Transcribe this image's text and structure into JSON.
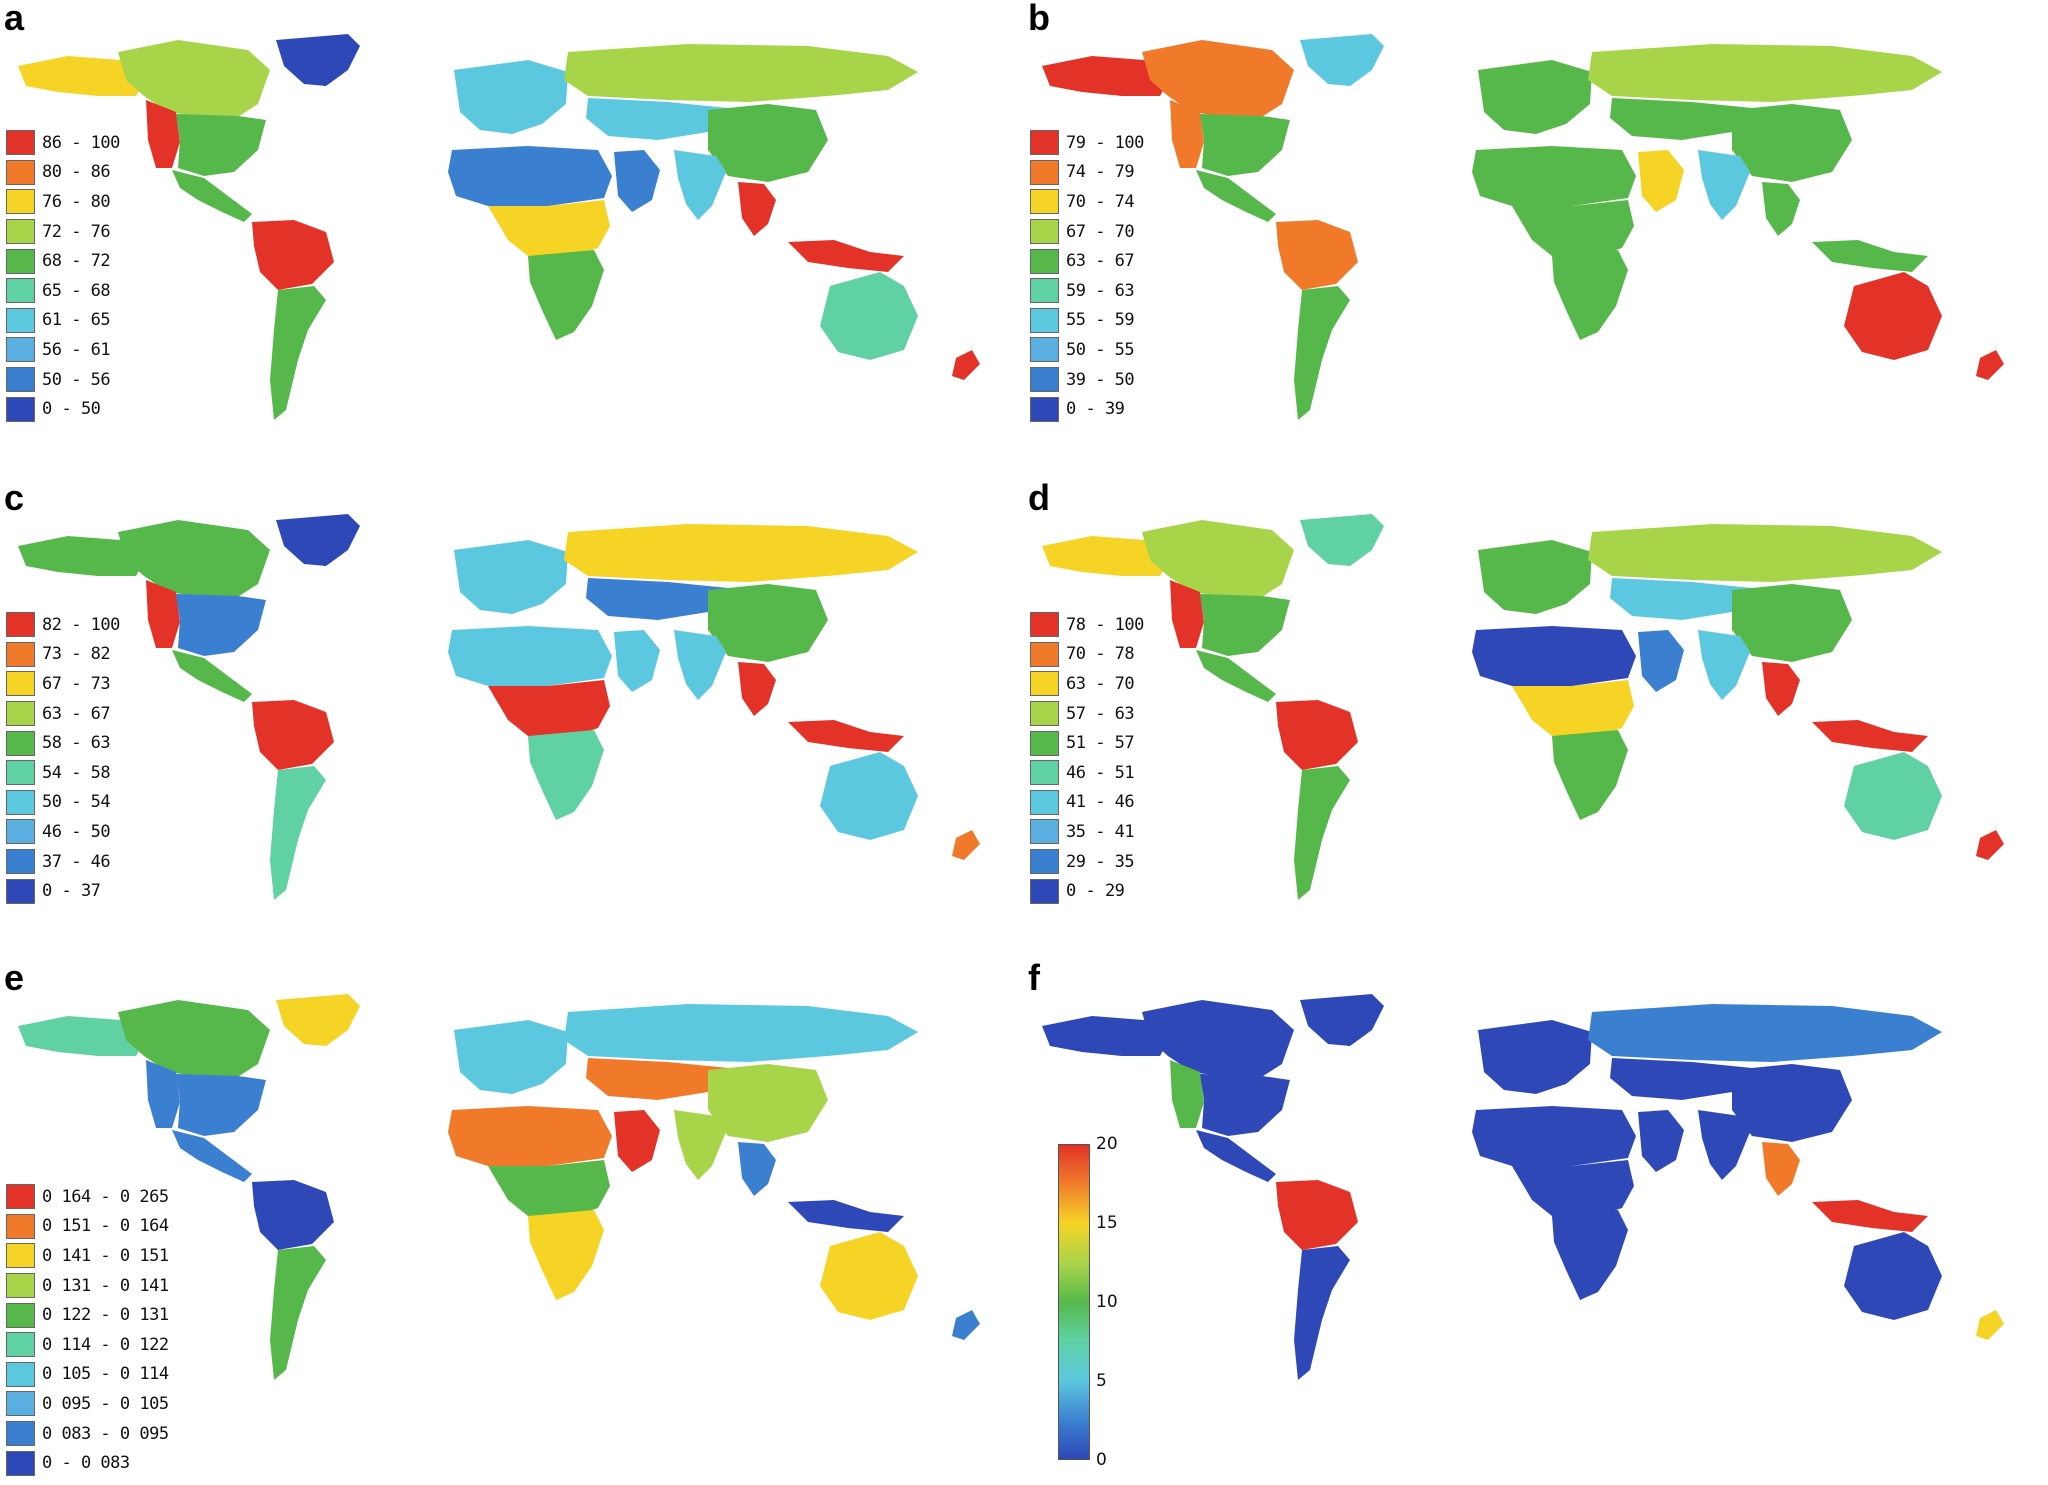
{
  "colors": {
    "c1": "#e33228",
    "c2": "#f07a2a",
    "c3": "#f5d426",
    "c4": "#a8d44a",
    "c5": "#56b84a",
    "c6": "#5fd1a2",
    "c7": "#5cc8e0",
    "c8": "#3b7fd0",
    "c9": "#2f48b8"
  },
  "panels": [
    {
      "letter": "a",
      "legend": [
        "86 - 100",
        "80 - 86",
        "76 - 80",
        "72 - 76",
        "68 - 72",
        "65 - 68",
        "61 - 65",
        "56 - 61",
        "50 - 56",
        "0 - 50"
      ],
      "greenland": "c9",
      "north_america": "c4",
      "alaska": "c3",
      "us_west": "c1",
      "us_east": "c5",
      "central_america": "c5",
      "amazon": "c1",
      "south_america_south": "c5",
      "europe": "c7",
      "siberia": "c4",
      "central_asia": "c7",
      "sahara": "c8",
      "africa_central": "c3",
      "africa_south": "c5",
      "arabia": "c8",
      "india": "c7",
      "china": "c5",
      "se_asia": "c1",
      "indonesia": "c1",
      "australia": "c6",
      "new_zealand": "c1"
    },
    {
      "letter": "b",
      "legend": [
        "79 - 100",
        "74 - 79",
        "70 - 74",
        "67 - 70",
        "63 - 67",
        "59 - 63",
        "55 - 59",
        "50 - 55",
        "39 - 50",
        "0 - 39"
      ],
      "greenland": "c7",
      "north_america": "c2",
      "alaska": "c1",
      "us_west": "c2",
      "us_east": "c5",
      "central_america": "c5",
      "amazon": "c2",
      "south_america_south": "c5",
      "europe": "c5",
      "siberia": "c4",
      "central_asia": "c5",
      "sahara": "c5",
      "africa_central": "c5",
      "africa_south": "c5",
      "arabia": "c3",
      "india": "c7",
      "china": "c5",
      "se_asia": "c5",
      "indonesia": "c5",
      "australia": "c1",
      "new_zealand": "c1"
    },
    {
      "letter": "c",
      "legend": [
        "82 - 100",
        "73 - 82",
        "67 - 73",
        "63 - 67",
        "58 - 63",
        "54 - 58",
        "50 - 54",
        "46 - 50",
        "37 - 46",
        "0 - 37"
      ],
      "greenland": "c9",
      "north_america": "c5",
      "alaska": "c5",
      "us_west": "c1",
      "us_east": "c8",
      "central_america": "c5",
      "amazon": "c1",
      "south_america_south": "c6",
      "europe": "c7",
      "siberia": "c3",
      "central_asia": "c8",
      "sahara": "c7",
      "africa_central": "c1",
      "africa_south": "c6",
      "arabia": "c7",
      "india": "c7",
      "china": "c5",
      "se_asia": "c1",
      "indonesia": "c1",
      "australia": "c7",
      "new_zealand": "c2"
    },
    {
      "letter": "d",
      "legend": [
        "78 - 100",
        "70 - 78",
        "63 - 70",
        "57 - 63",
        "51 - 57",
        "46 - 51",
        "41 - 46",
        "35 - 41",
        "29 - 35",
        "0 - 29"
      ],
      "greenland": "c6",
      "north_america": "c4",
      "alaska": "c3",
      "us_west": "c1",
      "us_east": "c5",
      "central_america": "c5",
      "amazon": "c1",
      "south_america_south": "c5",
      "europe": "c5",
      "siberia": "c4",
      "central_asia": "c7",
      "sahara": "c9",
      "africa_central": "c3",
      "africa_south": "c5",
      "arabia": "c8",
      "india": "c7",
      "china": "c5",
      "se_asia": "c1",
      "indonesia": "c1",
      "australia": "c6",
      "new_zealand": "c1"
    },
    {
      "letter": "e",
      "legend": [
        "0 164 - 0 265",
        "0 151 - 0 164",
        "0 141 - 0 151",
        "0 131 - 0 141",
        "0 122 - 0 131",
        "0 114 - 0 122",
        "0 105 - 0 114",
        "0 095 - 0 105",
        "0 083 - 0 095",
        "0 - 0 083"
      ],
      "greenland": "c3",
      "north_america": "c5",
      "alaska": "c6",
      "us_west": "c8",
      "us_east": "c8",
      "central_america": "c8",
      "amazon": "c9",
      "south_america_south": "c5",
      "europe": "c7",
      "siberia": "c7",
      "central_asia": "c2",
      "sahara": "c2",
      "africa_central": "c5",
      "africa_south": "c3",
      "arabia": "c1",
      "india": "c4",
      "china": "c4",
      "se_asia": "c8",
      "indonesia": "c9",
      "australia": "c3",
      "new_zealand": "c8"
    },
    {
      "letter": "f",
      "colorbar": {
        "ticks": [
          "20",
          "15",
          "10",
          "5",
          "0"
        ],
        "range": [
          0,
          20
        ]
      },
      "greenland": "c9",
      "north_america": "c9",
      "alaska": "c9",
      "us_west": "c5",
      "us_east": "c9",
      "central_america": "c9",
      "amazon": "c1",
      "south_america_south": "c9",
      "europe": "c9",
      "siberia": "c8",
      "central_asia": "c9",
      "sahara": "c9",
      "africa_central": "c9",
      "africa_south": "c9",
      "arabia": "c9",
      "india": "c9",
      "china": "c9",
      "se_asia": "c2",
      "indonesia": "c1",
      "australia": "c9",
      "new_zealand": "c3"
    }
  ]
}
